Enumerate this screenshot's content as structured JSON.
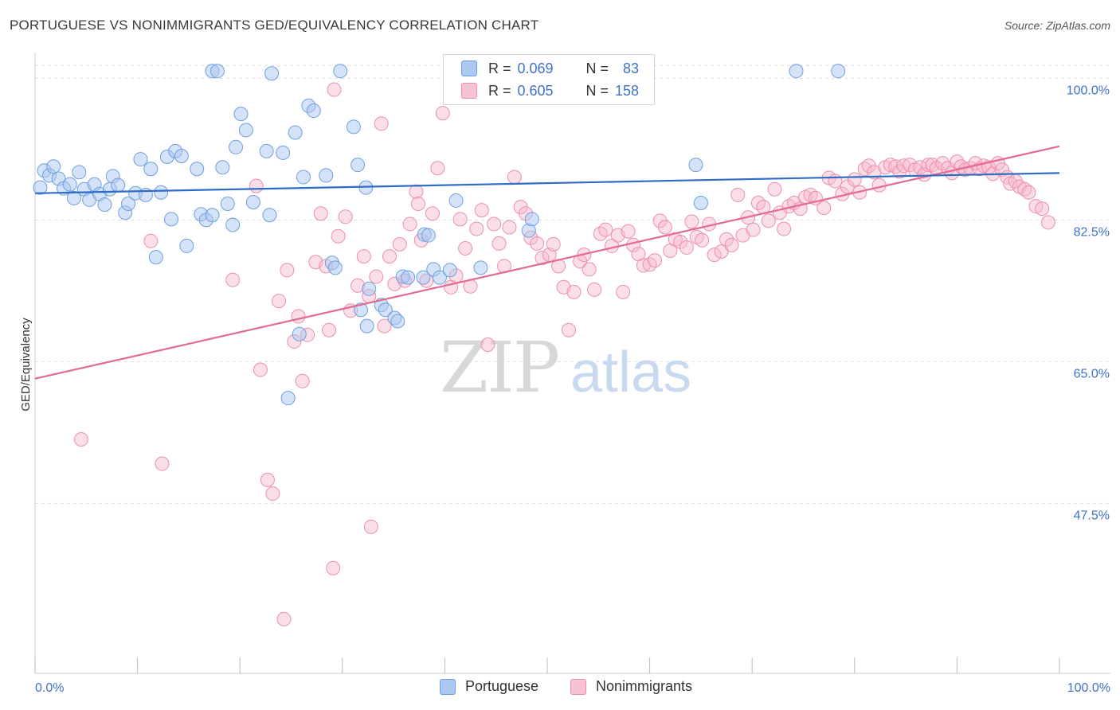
{
  "title": "PORTUGUESE VS NONIMMIGRANTS GED/EQUIVALENCY CORRELATION CHART",
  "source": "Source: ZipAtlas.com",
  "watermark": {
    "zip": "ZIP",
    "atlas": "atlas"
  },
  "colors": {
    "blue_fill": "#aac8f0",
    "blue_stroke": "#6f9fe0",
    "blue_line": "#2f6cc8",
    "pink_fill": "#f6b8cb",
    "pink_stroke": "#ec8fab",
    "pink_line": "#e26a94",
    "axis_text": "#3f73c6",
    "grid": "#dddddd"
  },
  "legend": {
    "rows": [
      {
        "r_label": "R =",
        "r_value": "0.069",
        "n_label": "N =",
        "n_value": "83"
      },
      {
        "r_label": "R =",
        "r_value": "0.605",
        "n_label": "N =",
        "n_value": "158"
      }
    ]
  },
  "bottom_legend": {
    "portuguese": "Portuguese",
    "nonimmigrants": "Nonimmigrants"
  },
  "chart_data": {
    "type": "scatter",
    "title": "PORTUGUESE VS NONIMMIGRANTS GED/EQUIVALENCY CORRELATION CHART",
    "xlabel": "",
    "ylabel": "GED/Equivalency",
    "xlim": [
      0,
      100
    ],
    "ylim": [
      26.5,
      102
    ],
    "x_tick_labels": [
      "0.0%",
      "100.0%"
    ],
    "y_ticks": [
      100,
      82.5,
      65,
      47.5
    ],
    "y_tick_labels": [
      "100.0%",
      "82.5%",
      "65.0%",
      "47.5%"
    ],
    "grid": true,
    "legend_position": "top-center",
    "series": [
      {
        "name": "Portuguese",
        "R": 0.069,
        "N": 83,
        "trend": {
          "x": [
            0,
            100
          ],
          "y": [
            85.8,
            88.3
          ]
        },
        "points": [
          [
            0.5,
            86.5
          ],
          [
            0.9,
            88.6
          ],
          [
            1.4,
            88.0
          ],
          [
            1.8,
            89.1
          ],
          [
            2.3,
            87.6
          ],
          [
            2.8,
            86.4
          ],
          [
            3.4,
            86.9
          ],
          [
            3.8,
            85.2
          ],
          [
            4.3,
            88.4
          ],
          [
            4.8,
            86.3
          ],
          [
            5.3,
            85.0
          ],
          [
            5.8,
            86.9
          ],
          [
            6.3,
            85.7
          ],
          [
            6.8,
            84.4
          ],
          [
            7.3,
            86.3
          ],
          [
            7.6,
            87.9
          ],
          [
            8.1,
            86.8
          ],
          [
            8.8,
            83.4
          ],
          [
            9.1,
            84.5
          ],
          [
            9.8,
            85.8
          ],
          [
            10.3,
            90.0
          ],
          [
            10.8,
            85.6
          ],
          [
            11.3,
            88.8
          ],
          [
            11.8,
            77.9
          ],
          [
            12.3,
            85.9
          ],
          [
            12.9,
            90.3
          ],
          [
            13.3,
            82.6
          ],
          [
            13.7,
            91.0
          ],
          [
            14.3,
            90.4
          ],
          [
            14.8,
            79.3
          ],
          [
            15.8,
            88.8
          ],
          [
            16.2,
            83.2
          ],
          [
            16.7,
            82.5
          ],
          [
            17.3,
            83.1
          ],
          [
            17.3,
            100.9
          ],
          [
            17.8,
            100.9
          ],
          [
            18.3,
            89.0
          ],
          [
            18.8,
            84.5
          ],
          [
            19.3,
            81.9
          ],
          [
            19.6,
            91.5
          ],
          [
            20.1,
            95.6
          ],
          [
            20.6,
            93.6
          ],
          [
            21.3,
            84.7
          ],
          [
            22.6,
            91.0
          ],
          [
            22.9,
            83.1
          ],
          [
            23.1,
            100.6
          ],
          [
            24.2,
            90.8
          ],
          [
            25.4,
            93.3
          ],
          [
            26.2,
            87.8
          ],
          [
            26.7,
            96.6
          ],
          [
            27.2,
            96.0
          ],
          [
            28.4,
            88.0
          ],
          [
            29.0,
            77.2
          ],
          [
            29.3,
            76.6
          ],
          [
            29.8,
            100.9
          ],
          [
            31.1,
            94.0
          ],
          [
            31.5,
            89.3
          ],
          [
            31.8,
            71.4
          ],
          [
            32.3,
            86.5
          ],
          [
            32.6,
            74.0
          ],
          [
            33.8,
            72.0
          ],
          [
            34.2,
            71.4
          ],
          [
            35.1,
            70.4
          ],
          [
            35.4,
            70.0
          ],
          [
            35.9,
            75.5
          ],
          [
            36.4,
            75.4
          ],
          [
            37.9,
            75.4
          ],
          [
            38.0,
            80.7
          ],
          [
            38.4,
            80.6
          ],
          [
            38.9,
            76.4
          ],
          [
            39.5,
            75.4
          ],
          [
            40.5,
            76.3
          ],
          [
            41.1,
            84.9
          ],
          [
            43.5,
            76.6
          ],
          [
            48.2,
            81.2
          ],
          [
            48.5,
            82.6
          ],
          [
            64.5,
            89.3
          ],
          [
            65.0,
            84.6
          ],
          [
            74.3,
            100.9
          ],
          [
            78.4,
            100.9
          ],
          [
            25.8,
            68.4
          ],
          [
            24.7,
            60.5
          ],
          [
            32.4,
            69.4
          ]
        ]
      },
      {
        "name": "Nonimmigrants",
        "R": 0.605,
        "N": 158,
        "trend": {
          "x": [
            0,
            100
          ],
          "y": [
            62.9,
            91.6
          ]
        },
        "points": [
          [
            4.5,
            55.4
          ],
          [
            11.3,
            79.9
          ],
          [
            12.4,
            52.4
          ],
          [
            19.3,
            75.1
          ],
          [
            21.6,
            86.7
          ],
          [
            22.0,
            64.0
          ],
          [
            22.7,
            50.4
          ],
          [
            23.2,
            48.7
          ],
          [
            23.8,
            72.5
          ],
          [
            24.6,
            76.3
          ],
          [
            25.3,
            67.5
          ],
          [
            25.7,
            70.6
          ],
          [
            26.1,
            62.6
          ],
          [
            26.6,
            68.3
          ],
          [
            27.4,
            77.3
          ],
          [
            27.9,
            83.3
          ],
          [
            28.4,
            76.8
          ],
          [
            28.7,
            68.9
          ],
          [
            29.2,
            98.6
          ],
          [
            29.6,
            80.5
          ],
          [
            30.3,
            82.9
          ],
          [
            30.8,
            71.3
          ],
          [
            31.5,
            74.4
          ],
          [
            32.1,
            78.0
          ],
          [
            32.6,
            73.1
          ],
          [
            33.3,
            75.5
          ],
          [
            33.8,
            94.4
          ],
          [
            34.1,
            69.4
          ],
          [
            34.6,
            78.0
          ],
          [
            35.1,
            74.6
          ],
          [
            35.6,
            79.5
          ],
          [
            36.1,
            75.0
          ],
          [
            36.6,
            82.0
          ],
          [
            37.2,
            86.0
          ],
          [
            37.4,
            84.5
          ],
          [
            37.7,
            80.0
          ],
          [
            38.2,
            75.0
          ],
          [
            38.8,
            83.3
          ],
          [
            39.3,
            88.9
          ],
          [
            39.8,
            95.7
          ],
          [
            40.6,
            74.2
          ],
          [
            41.1,
            75.6
          ],
          [
            41.5,
            82.6
          ],
          [
            42.0,
            79.0
          ],
          [
            42.5,
            74.3
          ],
          [
            43.1,
            81.4
          ],
          [
            43.6,
            83.7
          ],
          [
            44.2,
            67.1
          ],
          [
            44.8,
            82.0
          ],
          [
            45.3,
            79.6
          ],
          [
            45.8,
            76.8
          ],
          [
            46.3,
            81.6
          ],
          [
            46.8,
            87.8
          ],
          [
            47.4,
            84.1
          ],
          [
            47.9,
            83.3
          ],
          [
            48.4,
            80.3
          ],
          [
            49.0,
            79.6
          ],
          [
            49.5,
            77.8
          ],
          [
            50.2,
            78.2
          ],
          [
            50.6,
            79.5
          ],
          [
            51.1,
            76.8
          ],
          [
            51.6,
            74.2
          ],
          [
            52.1,
            68.9
          ],
          [
            52.6,
            73.6
          ],
          [
            53.2,
            77.4
          ],
          [
            53.6,
            78.2
          ],
          [
            54.1,
            76.4
          ],
          [
            54.6,
            73.9
          ],
          [
            55.2,
            80.8
          ],
          [
            55.7,
            81.3
          ],
          [
            56.3,
            79.3
          ],
          [
            56.9,
            80.6
          ],
          [
            57.4,
            73.6
          ],
          [
            57.9,
            81.1
          ],
          [
            58.4,
            79.4
          ],
          [
            58.9,
            78.3
          ],
          [
            59.4,
            76.9
          ],
          [
            60.0,
            77.0
          ],
          [
            60.5,
            77.5
          ],
          [
            61.0,
            82.4
          ],
          [
            61.5,
            81.6
          ],
          [
            62.0,
            78.7
          ],
          [
            62.5,
            80.1
          ],
          [
            63.0,
            79.8
          ],
          [
            63.6,
            79.1
          ],
          [
            64.1,
            82.3
          ],
          [
            64.6,
            80.4
          ],
          [
            65.1,
            80.0
          ],
          [
            65.8,
            82.0
          ],
          [
            66.3,
            78.2
          ],
          [
            67.0,
            78.6
          ],
          [
            67.5,
            80.1
          ],
          [
            68.0,
            79.4
          ],
          [
            68.6,
            85.6
          ],
          [
            69.1,
            80.6
          ],
          [
            69.6,
            82.8
          ],
          [
            70.1,
            81.3
          ],
          [
            70.6,
            84.6
          ],
          [
            71.1,
            84.1
          ],
          [
            71.6,
            82.4
          ],
          [
            72.2,
            86.3
          ],
          [
            72.7,
            83.4
          ],
          [
            73.1,
            81.4
          ],
          [
            73.6,
            84.2
          ],
          [
            74.1,
            84.6
          ],
          [
            74.7,
            83.9
          ],
          [
            75.2,
            85.3
          ],
          [
            75.7,
            85.6
          ],
          [
            76.2,
            85.2
          ],
          [
            77.0,
            84.0
          ],
          [
            77.5,
            87.7
          ],
          [
            78.1,
            87.3
          ],
          [
            78.8,
            85.7
          ],
          [
            79.3,
            86.6
          ],
          [
            80.0,
            87.5
          ],
          [
            80.5,
            85.9
          ],
          [
            81.0,
            88.8
          ],
          [
            81.4,
            89.2
          ],
          [
            81.9,
            88.4
          ],
          [
            82.4,
            86.8
          ],
          [
            83.0,
            89.0
          ],
          [
            83.5,
            89.3
          ],
          [
            84.0,
            89.1
          ],
          [
            84.4,
            88.5
          ],
          [
            84.8,
            89.2
          ],
          [
            85.4,
            89.3
          ],
          [
            85.9,
            88.7
          ],
          [
            86.4,
            89.0
          ],
          [
            86.8,
            88.1
          ],
          [
            87.2,
            89.3
          ],
          [
            87.6,
            89.3
          ],
          [
            88.0,
            88.9
          ],
          [
            88.6,
            89.5
          ],
          [
            89.1,
            88.9
          ],
          [
            89.5,
            88.3
          ],
          [
            90.0,
            89.7
          ],
          [
            90.4,
            89.1
          ],
          [
            90.8,
            88.7
          ],
          [
            91.3,
            88.9
          ],
          [
            91.8,
            89.5
          ],
          [
            92.2,
            88.8
          ],
          [
            92.6,
            89.2
          ],
          [
            93.1,
            89.0
          ],
          [
            93.5,
            88.2
          ],
          [
            94.0,
            89.5
          ],
          [
            94.4,
            88.7
          ],
          [
            94.9,
            87.8
          ],
          [
            95.2,
            87.0
          ],
          [
            95.7,
            87.3
          ],
          [
            96.1,
            86.6
          ],
          [
            96.6,
            86.3
          ],
          [
            97.0,
            85.9
          ],
          [
            97.7,
            84.2
          ],
          [
            98.3,
            83.9
          ],
          [
            98.9,
            82.2
          ],
          [
            24.3,
            33.2
          ],
          [
            29.1,
            39.5
          ],
          [
            32.8,
            44.6
          ]
        ]
      }
    ]
  }
}
